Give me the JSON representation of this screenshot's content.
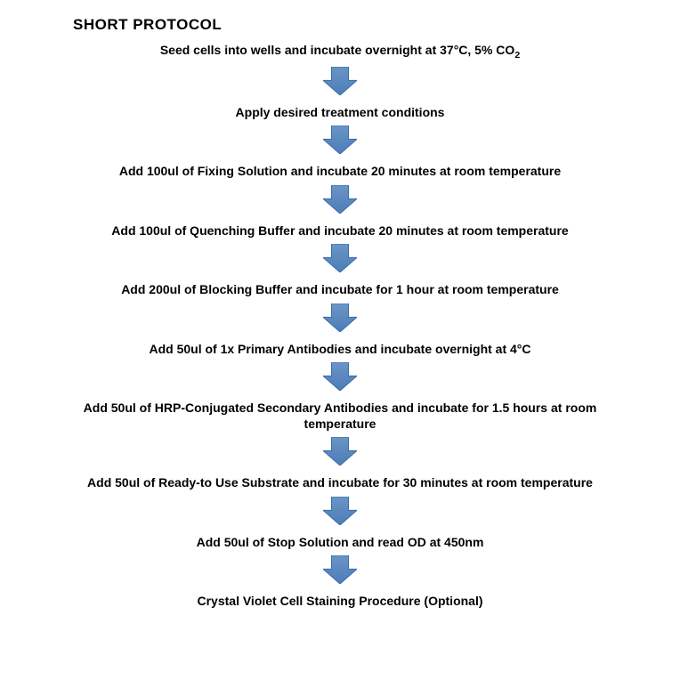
{
  "title": "SHORT PROTOCOL",
  "title_fontsize": 17,
  "step_fontsize": 14,
  "text_color": "#000000",
  "background_color": "#ffffff",
  "flowchart": {
    "type": "flowchart",
    "arrow": {
      "fill": "#4b7db8",
      "stroke": "#3b6da8",
      "stroke_width": 1,
      "width": 38,
      "height": 32
    },
    "steps": [
      "Seed cells into wells and incubate overnight at 37°C, 5% CO₂",
      "Apply desired treatment conditions",
      "Add 100ul of Fixing Solution and incubate 20 minutes at room temperature",
      "Add 100ul of Quenching Buffer and incubate 20 minutes at room temperature",
      "Add 200ul of Blocking Buffer and incubate for 1 hour at room temperature",
      "Add 50ul of 1x Primary Antibodies and incubate overnight at 4°C",
      "Add 50ul of HRP-Conjugated Secondary Antibodies and incubate for 1.5 hours at room temperature",
      "Add 50ul of Ready-to Use Substrate and incubate for 30 minutes at room temperature",
      "Add 50ul of Stop Solution and read OD at 450nm",
      "Crystal Violet Cell Staining Procedure (Optional)"
    ]
  }
}
